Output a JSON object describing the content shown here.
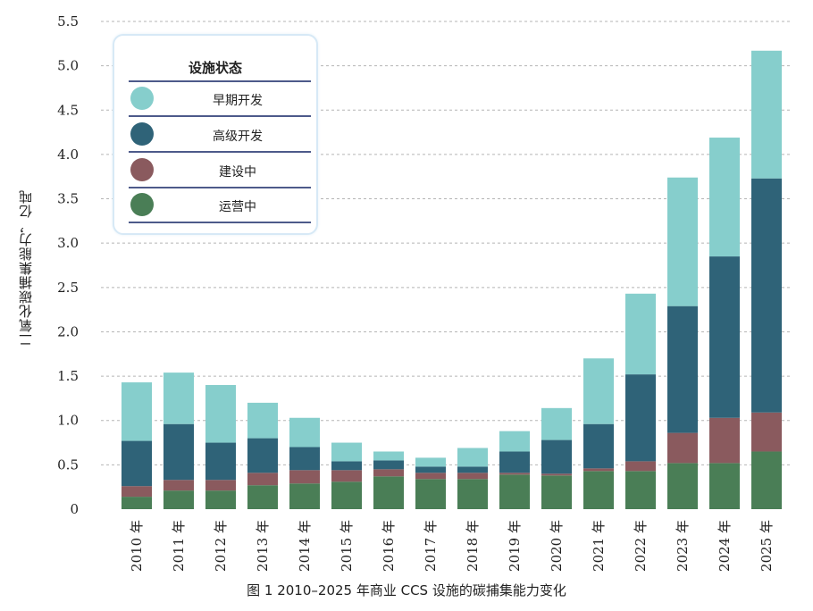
{
  "chart_data": {
    "type": "bar",
    "stacked": true,
    "categories": [
      "2010 年",
      "2011 年",
      "2012 年",
      "2013 年",
      "2014 年",
      "2015 年",
      "2016 年",
      "2017 年",
      "2018 年",
      "2019 年",
      "2020 年",
      "2021 年",
      "2022 年",
      "2023 年",
      "2024 年",
      "2025 年"
    ],
    "series": [
      {
        "name": "运营中",
        "color": "#4a7e56",
        "values": [
          0.14,
          0.21,
          0.21,
          0.27,
          0.29,
          0.31,
          0.37,
          0.34,
          0.34,
          0.39,
          0.38,
          0.43,
          0.43,
          0.52,
          0.52,
          0.65
        ]
      },
      {
        "name": "建设中",
        "color": "#8a5a5e",
        "values": [
          0.12,
          0.12,
          0.12,
          0.14,
          0.15,
          0.13,
          0.08,
          0.07,
          0.07,
          0.02,
          0.02,
          0.03,
          0.11,
          0.34,
          0.51,
          0.44
        ]
      },
      {
        "name": "高级开发",
        "color": "#2f6378",
        "values": [
          0.51,
          0.63,
          0.42,
          0.39,
          0.26,
          0.1,
          0.1,
          0.07,
          0.07,
          0.24,
          0.38,
          0.5,
          0.98,
          1.43,
          1.82,
          2.64
        ]
      },
      {
        "name": "早期开发",
        "color": "#86cecc",
        "values": [
          0.66,
          0.58,
          0.65,
          0.4,
          0.33,
          0.21,
          0.1,
          0.1,
          0.21,
          0.23,
          0.36,
          0.74,
          0.91,
          1.45,
          1.34,
          1.44
        ]
      }
    ],
    "ylabel": "二氧化碳捕集能力，亿吨",
    "yticks": [
      "0",
      "0.5",
      "1.0",
      "1.5",
      "2.0",
      "2.5",
      "3.0",
      "3.5",
      "4.0",
      "4.5",
      "5.0",
      "5.5"
    ],
    "ylim": [
      0,
      5.5
    ],
    "grid": true,
    "legend_position": "top-left",
    "caption": "图 1 2010–2025 年商业 CCS 设施的碳捕集能力变化"
  },
  "legend": {
    "title": "设施状态",
    "items": [
      {
        "label": "早期开发",
        "color": "#86cecc"
      },
      {
        "label": "高级开发",
        "color": "#2f6378"
      },
      {
        "label": "建设中",
        "color": "#8a5a5e"
      },
      {
        "label": "运营中",
        "color": "#4a7e56"
      }
    ]
  }
}
